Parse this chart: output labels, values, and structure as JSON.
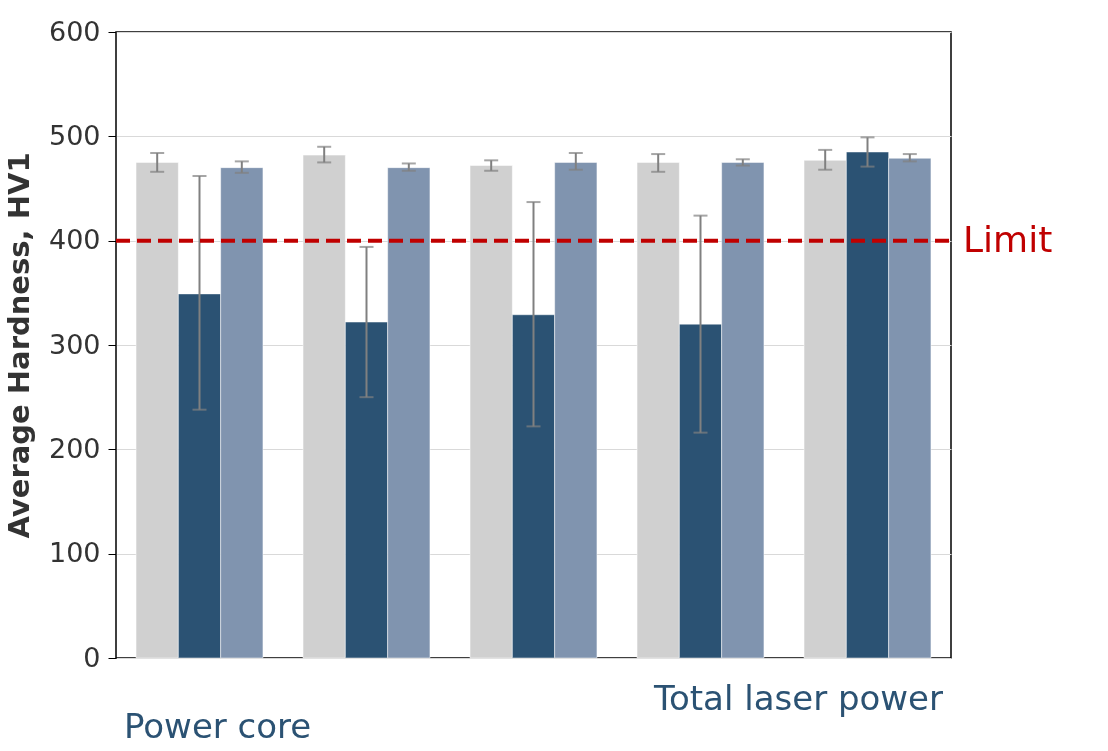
{
  "chart_data": {
    "type": "bar",
    "ylabel": "Average Hardness, HV1",
    "categories": [
      null,
      null,
      null,
      null,
      null
    ],
    "series": [
      {
        "color": "#d0d0d0",
        "values": [
          475,
          482,
          472,
          475,
          477
        ],
        "errors": [
          [
            466,
            484
          ],
          [
            475,
            490
          ],
          [
            467,
            477
          ],
          [
            466,
            483
          ],
          [
            468,
            487
          ]
        ]
      },
      {
        "color": "#2b5273",
        "values": [
          349,
          322,
          329,
          320,
          485
        ],
        "errors": [
          [
            238,
            462
          ],
          [
            250,
            394
          ],
          [
            222,
            437
          ],
          [
            216,
            424
          ],
          [
            471,
            499
          ]
        ]
      },
      {
        "color": "#8094af",
        "values": [
          470,
          470,
          475,
          475,
          479
        ],
        "errors": [
          [
            465,
            476
          ],
          [
            467,
            474
          ],
          [
            468,
            484
          ],
          [
            472,
            478
          ],
          [
            476,
            483
          ]
        ]
      }
    ],
    "ylim": [
      0,
      600
    ],
    "yticks": [
      0,
      100,
      200,
      300,
      400,
      500,
      600
    ],
    "grid": "y",
    "legend": false,
    "tick_labels": "y",
    "ref_lines": [
      {
        "axis": "y",
        "value": 400,
        "label": "Limit",
        "color": "#c00000",
        "line_style": "dashed"
      }
    ],
    "annotations": [
      "Total laser power",
      "Power core"
    ]
  }
}
